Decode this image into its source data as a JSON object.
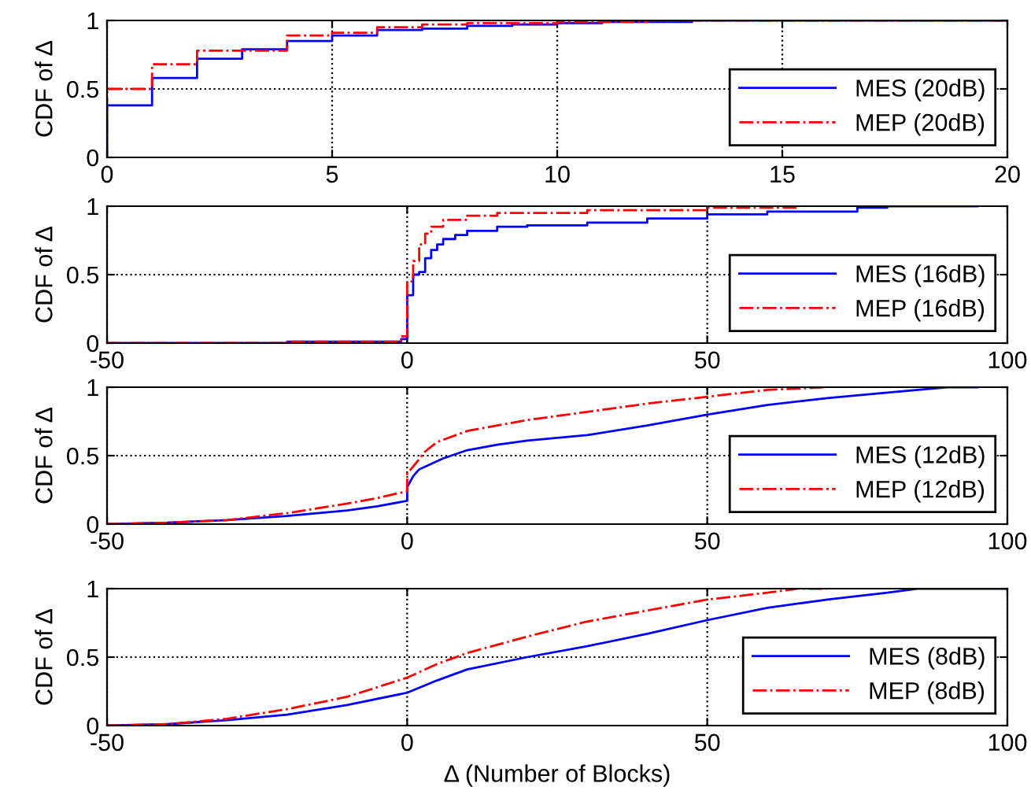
{
  "chart_data": [
    {
      "type": "step",
      "ylabel": "CDF of Δ",
      "xlim": [
        0,
        20
      ],
      "xticks": [
        0,
        5,
        10,
        15,
        20
      ],
      "ylim": [
        0,
        1
      ],
      "yticks": [
        0,
        0.5,
        1
      ],
      "grid": true,
      "legend": "bottom right",
      "series": [
        {
          "name": "MES (20dB)",
          "color": "#0000ff",
          "line_style": "solid",
          "x": [
            0,
            0,
            1,
            2,
            3,
            4,
            5,
            6,
            7,
            8,
            9,
            10,
            11,
            13,
            20
          ],
          "values": [
            0,
            0.38,
            0.58,
            0.72,
            0.79,
            0.85,
            0.89,
            0.93,
            0.94,
            0.96,
            0.97,
            0.98,
            0.99,
            1,
            1
          ]
        },
        {
          "name": "MEP (20dB)",
          "color": "#ff0000",
          "line_style": "dashdot",
          "x": [
            0,
            0,
            1,
            2,
            4,
            5,
            6,
            7,
            8,
            10,
            12,
            20
          ],
          "values": [
            0,
            0.5,
            0.68,
            0.78,
            0.89,
            0.91,
            0.95,
            0.97,
            0.98,
            0.99,
            1,
            1
          ]
        }
      ]
    },
    {
      "type": "step",
      "ylabel": "CDF of Δ",
      "xlim": [
        -50,
        100
      ],
      "xticks": [
        -50,
        0,
        50,
        100
      ],
      "ylim": [
        0,
        1
      ],
      "yticks": [
        0,
        0.5,
        1
      ],
      "grid": true,
      "legend": "bottom right",
      "series": [
        {
          "name": "MES (16dB)",
          "color": "#0000ff",
          "line_style": "solid",
          "x": [
            -50,
            -20,
            -1,
            0,
            1,
            2,
            3,
            4,
            5,
            6,
            8,
            10,
            15,
            20,
            30,
            40,
            50,
            60,
            75,
            80,
            95
          ],
          "values": [
            0,
            0.01,
            0.03,
            0.35,
            0.5,
            0.52,
            0.62,
            0.68,
            0.72,
            0.76,
            0.79,
            0.82,
            0.85,
            0.86,
            0.88,
            0.91,
            0.94,
            0.96,
            0.99,
            1,
            1
          ]
        },
        {
          "name": "MEP (16dB)",
          "color": "#ff0000",
          "line_style": "dashdot",
          "x": [
            -50,
            -20,
            -1,
            0,
            1,
            2,
            3,
            4,
            6,
            10,
            15,
            30,
            50,
            65
          ],
          "values": [
            0,
            0.01,
            0.05,
            0.45,
            0.6,
            0.72,
            0.8,
            0.85,
            0.9,
            0.93,
            0.95,
            0.97,
            0.99,
            1
          ]
        }
      ]
    },
    {
      "type": "line",
      "ylabel": "CDF of Δ",
      "xlim": [
        -50,
        100
      ],
      "xticks": [
        -50,
        0,
        50,
        100
      ],
      "ylim": [
        0,
        1
      ],
      "yticks": [
        0,
        0.5,
        1
      ],
      "grid": true,
      "legend": "bottom right",
      "series": [
        {
          "name": "MES (12dB)",
          "color": "#0000ff",
          "line_style": "solid",
          "x": [
            -50,
            -40,
            -30,
            -20,
            -10,
            -5,
            0,
            0,
            1,
            2,
            4,
            6,
            10,
            15,
            20,
            30,
            40,
            50,
            60,
            70,
            80,
            90,
            95
          ],
          "values": [
            0,
            0.01,
            0.03,
            0.06,
            0.1,
            0.13,
            0.17,
            0.27,
            0.35,
            0.4,
            0.44,
            0.48,
            0.54,
            0.58,
            0.61,
            0.65,
            0.72,
            0.8,
            0.87,
            0.92,
            0.96,
            1,
            1
          ]
        },
        {
          "name": "MEP (12dB)",
          "color": "#ff0000",
          "line_style": "dashdot",
          "x": [
            -50,
            -40,
            -30,
            -20,
            -10,
            -5,
            0,
            0,
            1,
            3,
            5,
            10,
            20,
            30,
            40,
            50,
            60,
            70
          ],
          "values": [
            0,
            0.01,
            0.03,
            0.08,
            0.15,
            0.19,
            0.24,
            0.37,
            0.42,
            0.53,
            0.6,
            0.68,
            0.76,
            0.82,
            0.88,
            0.93,
            0.98,
            1
          ]
        }
      ]
    },
    {
      "type": "line",
      "ylabel": "CDF of Δ",
      "xlabel": "Δ (Number of Blocks)",
      "xlim": [
        -50,
        100
      ],
      "xticks": [
        -50,
        0,
        50,
        100
      ],
      "ylim": [
        0,
        1
      ],
      "yticks": [
        0,
        0.5,
        1
      ],
      "grid": true,
      "legend": "bottom right",
      "series": [
        {
          "name": "MES (8dB)",
          "color": "#0000ff",
          "line_style": "solid",
          "x": [
            -50,
            -40,
            -30,
            -20,
            -10,
            0,
            5,
            10,
            20,
            30,
            40,
            50,
            60,
            70,
            80,
            85,
            100
          ],
          "values": [
            0,
            0.01,
            0.04,
            0.08,
            0.15,
            0.24,
            0.33,
            0.41,
            0.5,
            0.58,
            0.67,
            0.77,
            0.86,
            0.92,
            0.97,
            1,
            1
          ]
        },
        {
          "name": "MEP (8dB)",
          "color": "#ff0000",
          "line_style": "dashdot",
          "x": [
            -50,
            -40,
            -30,
            -20,
            -10,
            0,
            5,
            10,
            20,
            30,
            40,
            50,
            60,
            65,
            70
          ],
          "values": [
            0,
            0.01,
            0.05,
            0.12,
            0.21,
            0.35,
            0.45,
            0.53,
            0.65,
            0.76,
            0.84,
            0.92,
            0.97,
            1,
            1
          ]
        }
      ]
    }
  ]
}
